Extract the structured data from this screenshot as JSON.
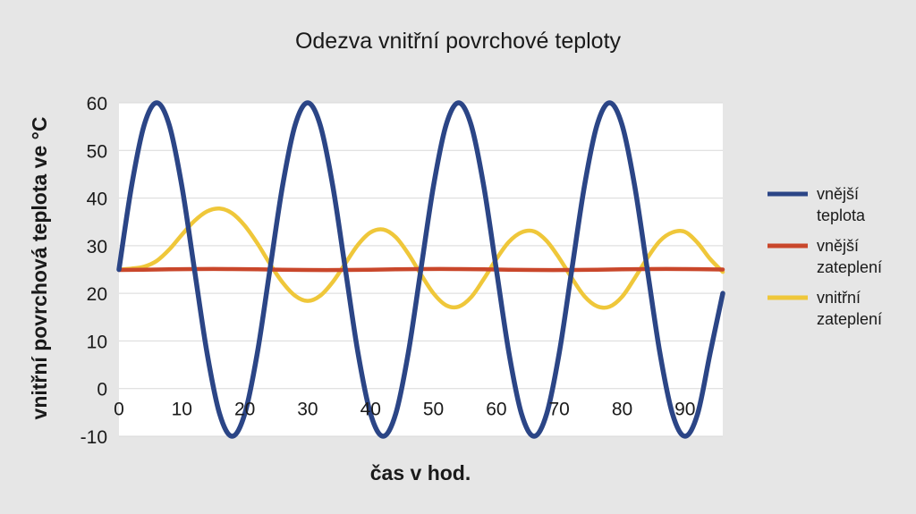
{
  "chart_data": {
    "type": "line",
    "title": "Odezva vnitřní povrchové teploty",
    "xlabel": "čas v hod.",
    "ylabel": "vnitřní povrchová teplota ve °C",
    "xlim": [
      0,
      96
    ],
    "ylim": [
      -10,
      60
    ],
    "x_ticks": [
      "0",
      "10",
      "20",
      "30",
      "40",
      "50",
      "60",
      "70",
      "80",
      "90"
    ],
    "y_ticks": [
      "-10",
      "0",
      "10",
      "20",
      "30",
      "40",
      "50",
      "60"
    ],
    "grid": true,
    "legend_position": "right",
    "series": [
      {
        "name": "vnější teplota",
        "color": "#2b4586",
        "x": [
          0,
          2,
          4,
          6,
          8,
          10,
          12,
          14,
          16,
          18,
          20,
          22,
          24,
          26,
          28,
          30,
          32,
          34,
          36,
          38,
          40,
          42,
          44,
          46,
          48,
          50,
          52,
          54,
          56,
          58,
          60,
          62,
          64,
          66,
          68,
          70,
          72,
          74,
          76,
          78,
          80,
          82,
          84,
          86,
          88,
          90,
          92,
          94,
          96
        ],
        "y": [
          25,
          42.5,
          55.3,
          60,
          55.3,
          42.5,
          25,
          7.5,
          -5.3,
          -10,
          -5.3,
          7.5,
          25,
          42.5,
          55.3,
          60,
          55.3,
          42.5,
          25,
          7.5,
          -5.3,
          -10,
          -5.3,
          7.5,
          25,
          42.5,
          55.3,
          60,
          55.3,
          42.5,
          25,
          7.5,
          -5.3,
          -10,
          -5.3,
          7.5,
          25,
          42.5,
          55.3,
          60,
          55.3,
          42.5,
          25,
          7.5,
          -5.3,
          -10,
          -5.3,
          7.5,
          20
        ]
      },
      {
        "name": "vnější zateplení",
        "color": "#c9472b",
        "x": [
          0,
          6,
          12,
          18,
          24,
          30,
          36,
          42,
          48,
          54,
          60,
          66,
          72,
          78,
          84,
          90,
          96
        ],
        "y": [
          24.9,
          25,
          25.1,
          25.1,
          25,
          24.9,
          24.9,
          25,
          25.1,
          25.1,
          25,
          24.9,
          24.9,
          25,
          25.1,
          25.1,
          25
        ]
      },
      {
        "name": "vnitřní zateplení",
        "color": "#efc73a",
        "x": [
          0,
          2,
          4,
          6,
          8,
          10,
          12,
          14,
          16,
          18,
          20,
          22,
          24,
          26,
          28,
          30,
          32,
          34,
          36,
          38,
          40,
          42,
          44,
          46,
          48,
          50,
          52,
          54,
          56,
          58,
          60,
          62,
          64,
          66,
          68,
          70,
          72,
          74,
          76,
          78,
          80,
          82,
          84,
          86,
          88,
          90,
          92,
          94,
          96
        ],
        "y": [
          25,
          25.2,
          25.6,
          26.8,
          29.2,
          32.3,
          35.2,
          37.2,
          37.8,
          36.8,
          34.2,
          30.5,
          26.2,
          22.3,
          19.5,
          18.4,
          19.5,
          22.4,
          26.3,
          30.2,
          32.8,
          33.4,
          31.8,
          28.3,
          24.0,
          20.0,
          17.5,
          17.2,
          19.2,
          23.0,
          27.2,
          30.8,
          32.8,
          33.0,
          31.0,
          27.4,
          23.2,
          19.4,
          17.3,
          17.2,
          19.3,
          23.2,
          27.4,
          31.0,
          32.8,
          32.9,
          30.6,
          27.2,
          24.5
        ]
      }
    ]
  }
}
